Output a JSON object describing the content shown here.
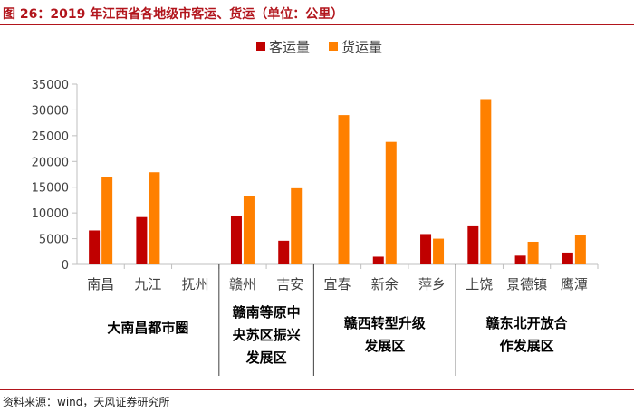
{
  "title": "图 26：2019 年江西省各地级市客运、货运（单位：公里）",
  "source": "资料来源：wind，天风证券研究所",
  "colors": {
    "title": "#b2151c",
    "passenger": "#c00000",
    "freight": "#ff8000",
    "axis": "#bfbfbf",
    "group_divider": "#404040"
  },
  "chart_data": {
    "type": "bar",
    "title": "",
    "xlabel": "",
    "ylabel": "",
    "ylim": [
      0,
      35000
    ],
    "yticks": [
      0,
      5000,
      10000,
      15000,
      20000,
      25000,
      30000,
      35000
    ],
    "grid": false,
    "legend_position": "top",
    "categories": [
      "南昌",
      "九江",
      "抚州",
      "赣州",
      "吉安",
      "宜春",
      "新余",
      "萍乡",
      "上饶",
      "景德镇",
      "鹰潭"
    ],
    "series": [
      {
        "name": "客运量",
        "color": "#c00000",
        "values": [
          6600,
          9200,
          0,
          9500,
          4600,
          0,
          1500,
          5900,
          7400,
          1700,
          2300
        ]
      },
      {
        "name": "货运量",
        "color": "#ff8000",
        "values": [
          16900,
          17900,
          0,
          13200,
          14800,
          29000,
          23800,
          5000,
          32100,
          4400,
          5800
        ]
      }
    ],
    "groups": [
      {
        "label_lines": [
          "大南昌都市圈"
        ],
        "start": 0,
        "end": 2
      },
      {
        "label_lines": [
          "赣南等原中",
          "央苏区振兴",
          "发展区"
        ],
        "start": 3,
        "end": 4
      },
      {
        "label_lines": [
          "赣西转型升级",
          "发展区"
        ],
        "start": 5,
        "end": 7
      },
      {
        "label_lines": [
          "赣东北开放合",
          "作发展区"
        ],
        "start": 8,
        "end": 10
      }
    ]
  }
}
